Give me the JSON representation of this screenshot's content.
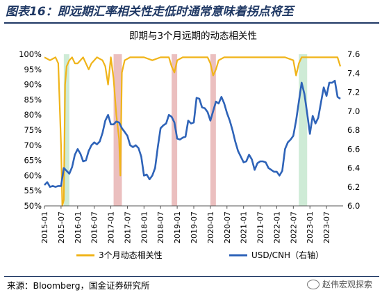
{
  "figure_title": "图表16：即远期汇率相关性走低时通常意味着拐点将至",
  "source_note": "来源：Bloomberg，国金证券研究所",
  "watermark": "赵伟宏观探索",
  "colors": {
    "correlation": "#f0b419",
    "usdcnh": "#2e63b8",
    "shade_red": "#e8b4b4",
    "shade_green": "#c5e8cf",
    "title": "#1f3864"
  },
  "chart_data": {
    "type": "line",
    "title": "即期与3个月远期的动态相关性",
    "x_tick_labels": [
      "2015-01",
      "2015-07",
      "2016-01",
      "2016-07",
      "2017-01",
      "2017-07",
      "2018-01",
      "2018-07",
      "2019-01",
      "2019-07",
      "2020-01",
      "2020-07",
      "2021-01",
      "2021-07",
      "2022-01",
      "2022-07",
      "2023-01",
      "2023-07"
    ],
    "x_range": [
      "2015-01",
      "2023-12"
    ],
    "y_left": {
      "ylim": [
        50,
        100
      ],
      "ticks": [
        "50%",
        "55%",
        "60%",
        "65%",
        "70%",
        "75%",
        "80%",
        "85%",
        "90%",
        "95%",
        "100%"
      ]
    },
    "y_right": {
      "ylim": [
        6.0,
        7.6
      ],
      "ticks": [
        "6.0",
        "6.2",
        "6.4",
        "6.6",
        "6.8",
        "7.0",
        "7.2",
        "7.4",
        "7.6"
      ]
    },
    "shaded_periods": [
      {
        "color": "green",
        "start": "2015-08",
        "end": "2015-10"
      },
      {
        "color": "red",
        "start": "2017-02",
        "end": "2017-05"
      },
      {
        "color": "red",
        "start": "2018-11",
        "end": "2019-01"
      },
      {
        "color": "red",
        "start": "2020-01",
        "end": "2020-03"
      },
      {
        "color": "green",
        "start": "2022-09",
        "end": "2022-12"
      }
    ],
    "series": [
      {
        "name": "3个月动态相关性",
        "axis": "left",
        "points": [
          [
            "2015-01",
            99
          ],
          [
            "2015-03",
            98
          ],
          [
            "2015-05",
            99
          ],
          [
            "2015-06",
            97
          ],
          [
            "2015-07",
            70
          ],
          [
            "2015-07-15",
            50
          ],
          [
            "2015-08",
            52
          ],
          [
            "2015-08-15",
            90
          ],
          [
            "2015-09",
            96
          ],
          [
            "2015-10",
            98
          ],
          [
            "2015-11",
            99
          ],
          [
            "2015-12",
            97
          ],
          [
            "2016-01",
            97
          ],
          [
            "2016-02",
            98
          ],
          [
            "2016-03",
            99
          ],
          [
            "2016-05",
            95
          ],
          [
            "2016-06",
            97
          ],
          [
            "2016-08",
            99
          ],
          [
            "2016-10",
            98
          ],
          [
            "2016-11",
            96
          ],
          [
            "2016-12",
            90
          ],
          [
            "2017-01",
            99
          ],
          [
            "2017-02",
            92
          ],
          [
            "2017-03",
            80
          ],
          [
            "2017-04",
            72
          ],
          [
            "2017-04-15",
            60
          ],
          [
            "2017-05",
            94
          ],
          [
            "2017-06",
            98
          ],
          [
            "2017-08",
            99
          ],
          [
            "2017-10",
            99
          ],
          [
            "2017-12",
            99
          ],
          [
            "2018-01",
            99
          ],
          [
            "2018-04",
            98
          ],
          [
            "2018-07",
            99
          ],
          [
            "2018-10",
            99
          ],
          [
            "2018-11",
            96
          ],
          [
            "2018-12",
            94
          ],
          [
            "2019-01",
            98
          ],
          [
            "2019-03",
            99
          ],
          [
            "2019-06",
            99
          ],
          [
            "2019-09",
            99
          ],
          [
            "2019-12",
            99
          ],
          [
            "2020-01",
            97
          ],
          [
            "2020-02",
            93
          ],
          [
            "2020-03",
            95
          ],
          [
            "2020-04",
            98
          ],
          [
            "2020-06",
            99
          ],
          [
            "2020-09",
            99
          ],
          [
            "2020-12",
            99
          ],
          [
            "2021-01",
            99
          ],
          [
            "2021-04",
            99
          ],
          [
            "2021-07",
            99
          ],
          [
            "2021-10",
            99
          ],
          [
            "2021-12",
            99
          ],
          [
            "2022-01",
            99
          ],
          [
            "2022-04",
            99
          ],
          [
            "2022-07",
            98
          ],
          [
            "2022-08",
            93
          ],
          [
            "2022-09",
            97
          ],
          [
            "2022-10",
            99
          ],
          [
            "2022-12",
            99
          ],
          [
            "2023-01",
            99
          ],
          [
            "2023-03",
            99
          ],
          [
            "2023-05",
            99
          ],
          [
            "2023-07",
            99
          ],
          [
            "2023-10",
            99
          ],
          [
            "2023-11",
            99
          ],
          [
            "2023-12",
            96
          ]
        ]
      },
      {
        "name": "USD/CNH（右轴）",
        "axis": "right",
        "points": [
          [
            "2015-01",
            6.22
          ],
          [
            "2015-02",
            6.25
          ],
          [
            "2015-03",
            6.2
          ],
          [
            "2015-04",
            6.21
          ],
          [
            "2015-05",
            6.2
          ],
          [
            "2015-06",
            6.21
          ],
          [
            "2015-07",
            6.21
          ],
          [
            "2015-08",
            6.4
          ],
          [
            "2015-09",
            6.37
          ],
          [
            "2015-10",
            6.34
          ],
          [
            "2015-11",
            6.41
          ],
          [
            "2015-12",
            6.54
          ],
          [
            "2016-01",
            6.6
          ],
          [
            "2016-02",
            6.55
          ],
          [
            "2016-03",
            6.47
          ],
          [
            "2016-04",
            6.48
          ],
          [
            "2016-05",
            6.58
          ],
          [
            "2016-06",
            6.64
          ],
          [
            "2016-07",
            6.67
          ],
          [
            "2016-08",
            6.65
          ],
          [
            "2016-09",
            6.68
          ],
          [
            "2016-10",
            6.77
          ],
          [
            "2016-11",
            6.9
          ],
          [
            "2016-12",
            6.96
          ],
          [
            "2017-01",
            6.86
          ],
          [
            "2017-02",
            6.86
          ],
          [
            "2017-03",
            6.89
          ],
          [
            "2017-04",
            6.88
          ],
          [
            "2017-05",
            6.82
          ],
          [
            "2017-06",
            6.78
          ],
          [
            "2017-07",
            6.74
          ],
          [
            "2017-08",
            6.64
          ],
          [
            "2017-09",
            6.62
          ],
          [
            "2017-10",
            6.64
          ],
          [
            "2017-11",
            6.61
          ],
          [
            "2017-12",
            6.52
          ],
          [
            "2018-01",
            6.32
          ],
          [
            "2018-02",
            6.33
          ],
          [
            "2018-03",
            6.28
          ],
          [
            "2018-04",
            6.32
          ],
          [
            "2018-05",
            6.4
          ],
          [
            "2018-06",
            6.62
          ],
          [
            "2018-07",
            6.82
          ],
          [
            "2018-08",
            6.85
          ],
          [
            "2018-09",
            6.87
          ],
          [
            "2018-10",
            6.96
          ],
          [
            "2018-11",
            6.94
          ],
          [
            "2018-12",
            6.88
          ],
          [
            "2019-01",
            6.71
          ],
          [
            "2019-02",
            6.7
          ],
          [
            "2019-03",
            6.72
          ],
          [
            "2019-04",
            6.73
          ],
          [
            "2019-05",
            6.9
          ],
          [
            "2019-06",
            6.87
          ],
          [
            "2019-07",
            6.88
          ],
          [
            "2019-08",
            7.14
          ],
          [
            "2019-09",
            7.13
          ],
          [
            "2019-10",
            7.04
          ],
          [
            "2019-11",
            7.03
          ],
          [
            "2019-12",
            6.99
          ],
          [
            "2020-01",
            6.9
          ],
          [
            "2020-02",
            7.0
          ],
          [
            "2020-03",
            7.1
          ],
          [
            "2020-04",
            7.08
          ],
          [
            "2020-05",
            7.15
          ],
          [
            "2020-06",
            7.08
          ],
          [
            "2020-07",
            6.98
          ],
          [
            "2020-08",
            6.9
          ],
          [
            "2020-09",
            6.8
          ],
          [
            "2020-10",
            6.68
          ],
          [
            "2020-11",
            6.58
          ],
          [
            "2020-12",
            6.52
          ],
          [
            "2021-01",
            6.46
          ],
          [
            "2021-02",
            6.47
          ],
          [
            "2021-03",
            6.54
          ],
          [
            "2021-04",
            6.49
          ],
          [
            "2021-05",
            6.38
          ],
          [
            "2021-06",
            6.45
          ],
          [
            "2021-07",
            6.47
          ],
          [
            "2021-08",
            6.47
          ],
          [
            "2021-09",
            6.46
          ],
          [
            "2021-10",
            6.4
          ],
          [
            "2021-11",
            6.38
          ],
          [
            "2021-12",
            6.36
          ],
          [
            "2022-01",
            6.36
          ],
          [
            "2022-02",
            6.32
          ],
          [
            "2022-03",
            6.37
          ],
          [
            "2022-04",
            6.6
          ],
          [
            "2022-05",
            6.67
          ],
          [
            "2022-06",
            6.7
          ],
          [
            "2022-07",
            6.74
          ],
          [
            "2022-08",
            6.9
          ],
          [
            "2022-09",
            7.1
          ],
          [
            "2022-10",
            7.3
          ],
          [
            "2022-11",
            7.18
          ],
          [
            "2022-12",
            6.98
          ],
          [
            "2023-01",
            6.76
          ],
          [
            "2023-02",
            6.95
          ],
          [
            "2023-03",
            6.87
          ],
          [
            "2023-04",
            6.93
          ],
          [
            "2023-05",
            7.09
          ],
          [
            "2023-06",
            7.25
          ],
          [
            "2023-07",
            7.16
          ],
          [
            "2023-08",
            7.3
          ],
          [
            "2023-09",
            7.3
          ],
          [
            "2023-10",
            7.32
          ],
          [
            "2023-11",
            7.15
          ],
          [
            "2023-12",
            7.13
          ]
        ]
      }
    ],
    "legend": {
      "position": "bottom",
      "entries": [
        "3个月动态相关性",
        "USD/CNH（右轴）"
      ]
    }
  }
}
